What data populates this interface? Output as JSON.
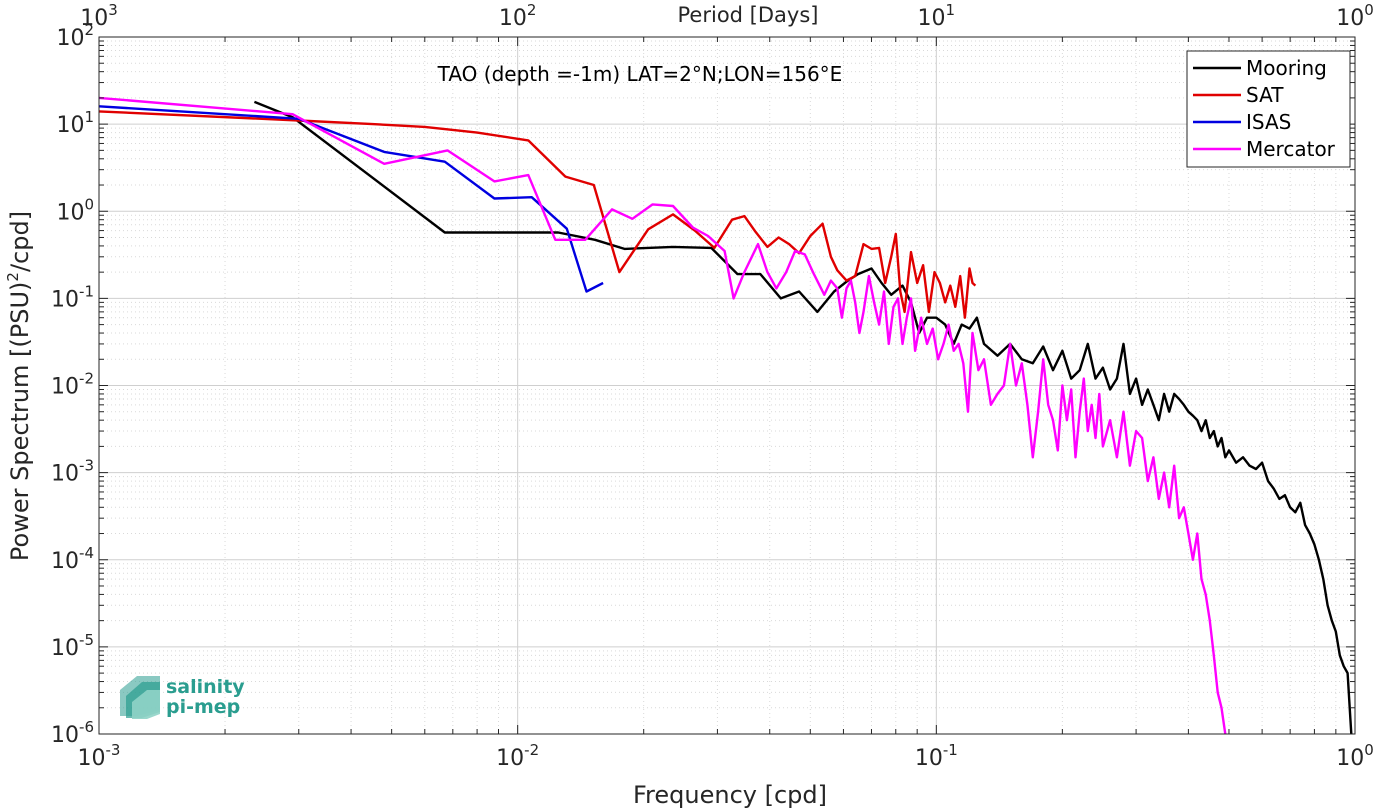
{
  "chart_data": {
    "type": "line",
    "title": "TAO (depth =-1m) LAT=2°N;LON=156°E",
    "xlabel": "Frequency [cpd]",
    "ylabel": "Power Spectrum [(PSU)",
    "ylabel_sup": "2",
    "ylabel_tail": "/cpd]",
    "top_xlabel": "Period [Days]",
    "xscale": "log",
    "yscale": "log",
    "xlim": [
      0.001,
      1
    ],
    "ylim": [
      1e-06,
      100
    ],
    "grid": true,
    "legend_position": "top-right",
    "x_ticks": [
      {
        "value": 0.001,
        "base": "10",
        "exp": "-3"
      },
      {
        "value": 0.01,
        "base": "10",
        "exp": "-2"
      },
      {
        "value": 0.1,
        "base": "10",
        "exp": "-1"
      },
      {
        "value": 1,
        "base": "10",
        "exp": "0"
      }
    ],
    "y_ticks": [
      {
        "value": 1e-06,
        "base": "10",
        "exp": "-6"
      },
      {
        "value": 1e-05,
        "base": "10",
        "exp": "-5"
      },
      {
        "value": 0.0001,
        "base": "10",
        "exp": "-4"
      },
      {
        "value": 0.001,
        "base": "10",
        "exp": "-3"
      },
      {
        "value": 0.01,
        "base": "10",
        "exp": "-2"
      },
      {
        "value": 0.1,
        "base": "10",
        "exp": "-1"
      },
      {
        "value": 1,
        "base": "10",
        "exp": "0"
      },
      {
        "value": 10,
        "base": "10",
        "exp": "1"
      },
      {
        "value": 100,
        "base": "10",
        "exp": "2"
      }
    ],
    "top_ticks": [
      {
        "value": 0.001,
        "base": "10",
        "exp": "3"
      },
      {
        "value": 0.01,
        "base": "10",
        "exp": "2"
      },
      {
        "value": 0.1,
        "base": "10",
        "exp": "1"
      },
      {
        "value": 1,
        "base": "10",
        "exp": "0"
      }
    ],
    "series": [
      {
        "name": "Mooring",
        "color": "#000000",
        "points": [
          [
            0.00235,
            18
          ],
          [
            0.0029,
            12
          ],
          [
            0.0067,
            0.57
          ],
          [
            0.0088,
            0.57
          ],
          [
            0.0125,
            0.57
          ],
          [
            0.0153,
            0.47
          ],
          [
            0.018,
            0.37
          ],
          [
            0.0235,
            0.39
          ],
          [
            0.029,
            0.38
          ],
          [
            0.0335,
            0.19
          ],
          [
            0.038,
            0.19
          ],
          [
            0.0425,
            0.1
          ],
          [
            0.047,
            0.12
          ],
          [
            0.052,
            0.07
          ],
          [
            0.057,
            0.12
          ],
          [
            0.0615,
            0.16
          ],
          [
            0.065,
            0.19
          ],
          [
            0.07,
            0.22
          ],
          [
            0.074,
            0.15
          ],
          [
            0.078,
            0.11
          ],
          [
            0.083,
            0.14
          ],
          [
            0.087,
            0.09
          ],
          [
            0.091,
            0.04
          ],
          [
            0.095,
            0.06
          ],
          [
            0.1,
            0.06
          ],
          [
            0.105,
            0.05
          ],
          [
            0.11,
            0.03
          ],
          [
            0.115,
            0.05
          ],
          [
            0.12,
            0.045
          ],
          [
            0.125,
            0.06
          ],
          [
            0.13,
            0.03
          ],
          [
            0.14,
            0.022
          ],
          [
            0.15,
            0.03
          ],
          [
            0.16,
            0.02
          ],
          [
            0.17,
            0.018
          ],
          [
            0.18,
            0.028
          ],
          [
            0.19,
            0.015
          ],
          [
            0.2,
            0.025
          ],
          [
            0.21,
            0.012
          ],
          [
            0.22,
            0.015
          ],
          [
            0.23,
            0.03
          ],
          [
            0.24,
            0.012
          ],
          [
            0.25,
            0.016
          ],
          [
            0.26,
            0.009
          ],
          [
            0.27,
            0.012
          ],
          [
            0.28,
            0.03
          ],
          [
            0.29,
            0.008
          ],
          [
            0.3,
            0.012
          ],
          [
            0.31,
            0.006
          ],
          [
            0.32,
            0.009
          ],
          [
            0.33,
            0.006
          ],
          [
            0.34,
            0.004
          ],
          [
            0.35,
            0.008
          ],
          [
            0.36,
            0.005
          ],
          [
            0.37,
            0.008
          ],
          [
            0.38,
            0.007
          ],
          [
            0.39,
            0.006
          ],
          [
            0.4,
            0.005
          ],
          [
            0.41,
            0.0045
          ],
          [
            0.42,
            0.004
          ],
          [
            0.43,
            0.003
          ],
          [
            0.44,
            0.004
          ],
          [
            0.45,
            0.0025
          ],
          [
            0.46,
            0.003
          ],
          [
            0.47,
            0.002
          ],
          [
            0.48,
            0.0025
          ],
          [
            0.49,
            0.0015
          ],
          [
            0.5,
            0.0018
          ],
          [
            0.52,
            0.0013
          ],
          [
            0.54,
            0.0015
          ],
          [
            0.56,
            0.0012
          ],
          [
            0.58,
            0.0011
          ],
          [
            0.6,
            0.0013
          ],
          [
            0.62,
            0.0008
          ],
          [
            0.64,
            0.00065
          ],
          [
            0.66,
            0.0005
          ],
          [
            0.68,
            0.00055
          ],
          [
            0.7,
            0.0004
          ],
          [
            0.72,
            0.00035
          ],
          [
            0.74,
            0.00045
          ],
          [
            0.76,
            0.00025
          ],
          [
            0.78,
            0.0002
          ],
          [
            0.8,
            0.00015
          ],
          [
            0.82,
            0.0001
          ],
          [
            0.84,
            6e-05
          ],
          [
            0.86,
            3e-05
          ],
          [
            0.88,
            2e-05
          ],
          [
            0.9,
            1.5e-05
          ],
          [
            0.92,
            8e-06
          ],
          [
            0.94,
            6e-06
          ],
          [
            0.96,
            5e-06
          ],
          [
            0.98,
            1e-06
          ]
        ]
      },
      {
        "name": "SAT",
        "color": "#e00000",
        "points": [
          [
            0.001,
            14
          ],
          [
            0.003,
            11
          ],
          [
            0.0045,
            10
          ],
          [
            0.006,
            9.3
          ],
          [
            0.008,
            8
          ],
          [
            0.0106,
            6.5
          ],
          [
            0.013,
            2.5
          ],
          [
            0.0152,
            2
          ],
          [
            0.0175,
            0.2
          ],
          [
            0.0205,
            0.62
          ],
          [
            0.0235,
            0.92
          ],
          [
            0.0265,
            0.6
          ],
          [
            0.0295,
            0.38
          ],
          [
            0.0325,
            0.8
          ],
          [
            0.0348,
            0.88
          ],
          [
            0.037,
            0.58
          ],
          [
            0.0395,
            0.39
          ],
          [
            0.042,
            0.5
          ],
          [
            0.0445,
            0.42
          ],
          [
            0.047,
            0.33
          ],
          [
            0.05,
            0.52
          ],
          [
            0.0535,
            0.72
          ],
          [
            0.056,
            0.3
          ],
          [
            0.058,
            0.21
          ],
          [
            0.061,
            0.16
          ],
          [
            0.064,
            0.18
          ],
          [
            0.067,
            0.42
          ],
          [
            0.07,
            0.37
          ],
          [
            0.073,
            0.38
          ],
          [
            0.0755,
            0.15
          ],
          [
            0.078,
            0.3
          ],
          [
            0.08,
            0.55
          ],
          [
            0.082,
            0.12
          ],
          [
            0.084,
            0.07
          ],
          [
            0.087,
            0.34
          ],
          [
            0.09,
            0.15
          ],
          [
            0.093,
            0.24
          ],
          [
            0.096,
            0.07
          ],
          [
            0.099,
            0.2
          ],
          [
            0.102,
            0.15
          ],
          [
            0.105,
            0.09
          ],
          [
            0.108,
            0.14
          ],
          [
            0.111,
            0.08
          ],
          [
            0.114,
            0.18
          ],
          [
            0.117,
            0.06
          ],
          [
            0.12,
            0.22
          ],
          [
            0.122,
            0.15
          ],
          [
            0.124,
            0.14
          ]
        ]
      },
      {
        "name": "ISAS",
        "color": "#0000e0",
        "points": [
          [
            0.001,
            16
          ],
          [
            0.003,
            11.5
          ],
          [
            0.0048,
            4.8
          ],
          [
            0.0067,
            3.7
          ],
          [
            0.0088,
            1.4
          ],
          [
            0.0108,
            1.45
          ],
          [
            0.0131,
            0.63
          ],
          [
            0.0146,
            0.12
          ],
          [
            0.016,
            0.15
          ]
        ]
      },
      {
        "name": "Mercator",
        "color": "#ff00ff",
        "points": [
          [
            0.001,
            20
          ],
          [
            0.0029,
            13
          ],
          [
            0.0048,
            3.5
          ],
          [
            0.0068,
            5
          ],
          [
            0.0088,
            2.2
          ],
          [
            0.0106,
            2.6
          ],
          [
            0.0123,
            0.47
          ],
          [
            0.0145,
            0.47
          ],
          [
            0.0168,
            1.05
          ],
          [
            0.0188,
            0.82
          ],
          [
            0.021,
            1.2
          ],
          [
            0.0235,
            1.15
          ],
          [
            0.0262,
            0.65
          ],
          [
            0.0285,
            0.52
          ],
          [
            0.0312,
            0.35
          ],
          [
            0.0328,
            0.1
          ],
          [
            0.0348,
            0.2
          ],
          [
            0.0375,
            0.42
          ],
          [
            0.0395,
            0.2
          ],
          [
            0.0415,
            0.13
          ],
          [
            0.0438,
            0.2
          ],
          [
            0.046,
            0.35
          ],
          [
            0.0485,
            0.32
          ],
          [
            0.051,
            0.19
          ],
          [
            0.054,
            0.11
          ],
          [
            0.056,
            0.16
          ],
          [
            0.058,
            0.13
          ],
          [
            0.0595,
            0.06
          ],
          [
            0.061,
            0.13
          ],
          [
            0.0625,
            0.16
          ],
          [
            0.064,
            0.09
          ],
          [
            0.0655,
            0.04
          ],
          [
            0.067,
            0.07
          ],
          [
            0.069,
            0.18
          ],
          [
            0.071,
            0.09
          ],
          [
            0.073,
            0.05
          ],
          [
            0.075,
            0.12
          ],
          [
            0.077,
            0.03
          ],
          [
            0.079,
            0.08
          ],
          [
            0.081,
            0.1
          ],
          [
            0.083,
            0.03
          ],
          [
            0.085,
            0.06
          ],
          [
            0.087,
            0.1
          ],
          [
            0.089,
            0.025
          ],
          [
            0.092,
            0.06
          ],
          [
            0.095,
            0.03
          ],
          [
            0.098,
            0.045
          ],
          [
            0.101,
            0.02
          ],
          [
            0.104,
            0.03
          ],
          [
            0.107,
            0.05
          ],
          [
            0.11,
            0.025
          ],
          [
            0.113,
            0.03
          ],
          [
            0.116,
            0.018
          ],
          [
            0.119,
            0.005
          ],
          [
            0.122,
            0.04
          ],
          [
            0.126,
            0.015
          ],
          [
            0.13,
            0.02
          ],
          [
            0.135,
            0.006
          ],
          [
            0.14,
            0.008
          ],
          [
            0.145,
            0.01
          ],
          [
            0.15,
            0.03
          ],
          [
            0.155,
            0.01
          ],
          [
            0.16,
            0.018
          ],
          [
            0.165,
            0.006
          ],
          [
            0.17,
            0.0015
          ],
          [
            0.175,
            0.005
          ],
          [
            0.18,
            0.02
          ],
          [
            0.185,
            0.006
          ],
          [
            0.19,
            0.004
          ],
          [
            0.195,
            0.0018
          ],
          [
            0.2,
            0.01
          ],
          [
            0.205,
            0.004
          ],
          [
            0.21,
            0.009
          ],
          [
            0.215,
            0.0015
          ],
          [
            0.22,
            0.005
          ],
          [
            0.225,
            0.012
          ],
          [
            0.23,
            0.003
          ],
          [
            0.235,
            0.006
          ],
          [
            0.24,
            0.0025
          ],
          [
            0.245,
            0.008
          ],
          [
            0.25,
            0.002
          ],
          [
            0.26,
            0.004
          ],
          [
            0.27,
            0.0015
          ],
          [
            0.28,
            0.005
          ],
          [
            0.29,
            0.0012
          ],
          [
            0.3,
            0.003
          ],
          [
            0.31,
            0.0025
          ],
          [
            0.32,
            0.0008
          ],
          [
            0.33,
            0.0015
          ],
          [
            0.34,
            0.0005
          ],
          [
            0.35,
            0.001
          ],
          [
            0.36,
            0.0004
          ],
          [
            0.37,
            0.0012
          ],
          [
            0.38,
            0.0003
          ],
          [
            0.39,
            0.0004
          ],
          [
            0.4,
            0.0002
          ],
          [
            0.41,
            0.0001
          ],
          [
            0.42,
            0.0002
          ],
          [
            0.43,
            6e-05
          ],
          [
            0.44,
            4e-05
          ],
          [
            0.45,
            2e-05
          ],
          [
            0.46,
            8e-06
          ],
          [
            0.47,
            3e-06
          ],
          [
            0.48,
            2e-06
          ],
          [
            0.49,
            1e-06
          ]
        ]
      }
    ]
  },
  "logo": {
    "line1": "salinity",
    "line2": "pi-mep"
  }
}
